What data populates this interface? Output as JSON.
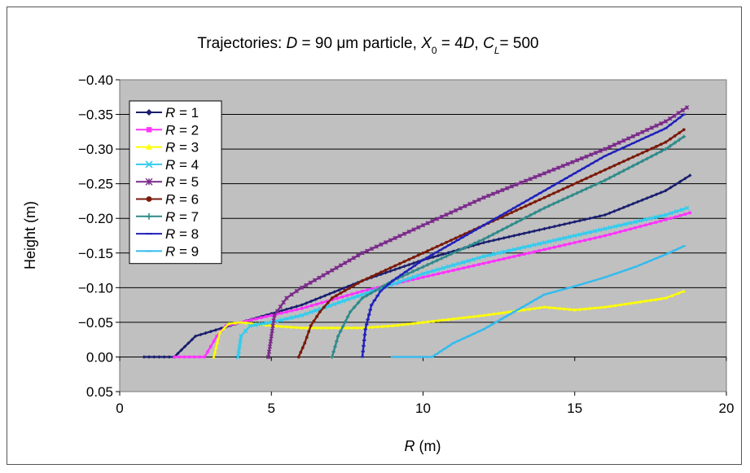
{
  "chart_data": {
    "type": "line",
    "title_parts": [
      {
        "t": "Trajectories: ",
        "i": false,
        "sub": false
      },
      {
        "t": "D",
        "i": true,
        "sub": false
      },
      {
        "t": " = 90 μm particle, ",
        "i": false,
        "sub": false
      },
      {
        "t": "X",
        "i": true,
        "sub": false
      },
      {
        "t": "0",
        "i": false,
        "sub": true
      },
      {
        "t": " = 4",
        "i": false,
        "sub": false
      },
      {
        "t": "D",
        "i": true,
        "sub": false
      },
      {
        "t": ", ",
        "i": false,
        "sub": false
      },
      {
        "t": "C",
        "i": true,
        "sub": false
      },
      {
        "t": "L",
        "i": true,
        "sub": true
      },
      {
        "t": "= 500",
        "i": false,
        "sub": false
      }
    ],
    "xlabel_parts": [
      {
        "t": "R",
        "i": true,
        "sub": false
      },
      {
        "t": " (m)",
        "i": false,
        "sub": false
      }
    ],
    "ylabel": "Height (m)",
    "xlim": [
      0,
      20
    ],
    "ylim": [
      -0.4,
      0.05
    ],
    "y_reversed": true,
    "xticks": [
      "0",
      "5",
      "10",
      "15",
      "20"
    ],
    "yticks": [
      "−0.40",
      "−0.35",
      "−0.30",
      "−0.25",
      "−0.20",
      "−0.15",
      "−0.10",
      "−0.05",
      "0.00",
      "0.05"
    ],
    "grid": "horizontal",
    "plot_background": "#c0c0c0",
    "legend_position": "top-left",
    "series": [
      {
        "name": "R = 1",
        "label_var": "R",
        "label_eq": " = 1",
        "color": "#1a1f6e",
        "marker": "diamond",
        "x": [
          0.8,
          1.8,
          2.5,
          4,
          6,
          8,
          10,
          12,
          14,
          16,
          18,
          18.8
        ],
        "y": [
          0,
          0,
          -0.03,
          -0.05,
          -0.075,
          -0.11,
          -0.14,
          -0.165,
          -0.185,
          -0.205,
          -0.24,
          -0.262
        ]
      },
      {
        "name": "R = 2",
        "label_var": "R",
        "label_eq": " = 2",
        "color": "#ff33ff",
        "marker": "square",
        "x": [
          1.8,
          2.8,
          3.2,
          3.5,
          4,
          6,
          8,
          10,
          12,
          14,
          16,
          18,
          18.8
        ],
        "y": [
          0,
          0,
          -0.03,
          -0.045,
          -0.05,
          -0.07,
          -0.095,
          -0.115,
          -0.135,
          -0.155,
          -0.175,
          -0.198,
          -0.208
        ]
      },
      {
        "name": "R = 3",
        "label_var": "R",
        "label_eq": " = 3",
        "color": "#ffff00",
        "marker": "triangle",
        "x": [
          3.1,
          3.3,
          3.6,
          4,
          5,
          6,
          7,
          8,
          9,
          10,
          12,
          14,
          15,
          16,
          18,
          18.6
        ],
        "y": [
          0,
          -0.035,
          -0.048,
          -0.05,
          -0.045,
          -0.042,
          -0.042,
          -0.042,
          -0.045,
          -0.05,
          -0.06,
          -0.072,
          -0.068,
          -0.072,
          -0.085,
          -0.095
        ]
      },
      {
        "name": "R = 4",
        "label_var": "R",
        "label_eq": " = 4",
        "color": "#33ccee",
        "marker": "x",
        "x": [
          3.9,
          4.0,
          4.3,
          5,
          6,
          8,
          10,
          12,
          14,
          16,
          18,
          18.7
        ],
        "y": [
          0,
          -0.03,
          -0.045,
          -0.05,
          -0.06,
          -0.09,
          -0.12,
          -0.145,
          -0.165,
          -0.185,
          -0.205,
          -0.215
        ]
      },
      {
        "name": "R = 5",
        "label_var": "R",
        "label_eq": " = 5",
        "color": "#7a2a8a",
        "marker": "star",
        "x": [
          4.9,
          5.1,
          5.5,
          6,
          7,
          8,
          10,
          12,
          14,
          16,
          18,
          18.7
        ],
        "y": [
          0,
          -0.06,
          -0.085,
          -0.1,
          -0.125,
          -0.15,
          -0.19,
          -0.23,
          -0.265,
          -0.3,
          -0.34,
          -0.36
        ]
      },
      {
        "name": "R = 6",
        "label_var": "R",
        "label_eq": " = 6",
        "color": "#7a1a0a",
        "marker": "circle",
        "x": [
          5.9,
          6.1,
          6.3,
          6.6,
          7,
          8,
          10,
          12,
          14,
          16,
          18,
          18.6
        ],
        "y": [
          0,
          -0.02,
          -0.045,
          -0.065,
          -0.085,
          -0.11,
          -0.15,
          -0.19,
          -0.23,
          -0.27,
          -0.31,
          -0.328
        ]
      },
      {
        "name": "R = 7",
        "label_var": "R",
        "label_eq": " = 7",
        "color": "#2f8a8a",
        "marker": "plus",
        "x": [
          7.0,
          7.2,
          7.6,
          8,
          9,
          10,
          12,
          14,
          16,
          18,
          18.6
        ],
        "y": [
          0,
          -0.03,
          -0.065,
          -0.085,
          -0.11,
          -0.13,
          -0.17,
          -0.215,
          -0.255,
          -0.3,
          -0.318
        ]
      },
      {
        "name": "R = 8",
        "label_var": "R",
        "label_eq": " = 8",
        "color": "#2020bb",
        "marker": "dash",
        "x": [
          8.0,
          8.1,
          8.3,
          8.6,
          9,
          10,
          12,
          14,
          16,
          18,
          18.6
        ],
        "y": [
          0,
          -0.04,
          -0.075,
          -0.095,
          -0.11,
          -0.14,
          -0.19,
          -0.24,
          -0.29,
          -0.33,
          -0.35
        ]
      },
      {
        "name": "R = 9",
        "label_var": "R",
        "label_eq": " = 9",
        "color": "#33bbee",
        "marker": "dash",
        "x": [
          9.0,
          10.3,
          11,
          12,
          13,
          14,
          15,
          16,
          17,
          18,
          18.6
        ],
        "y": [
          0,
          0,
          -0.02,
          -0.04,
          -0.065,
          -0.09,
          -0.102,
          -0.115,
          -0.13,
          -0.148,
          -0.16
        ]
      }
    ]
  }
}
